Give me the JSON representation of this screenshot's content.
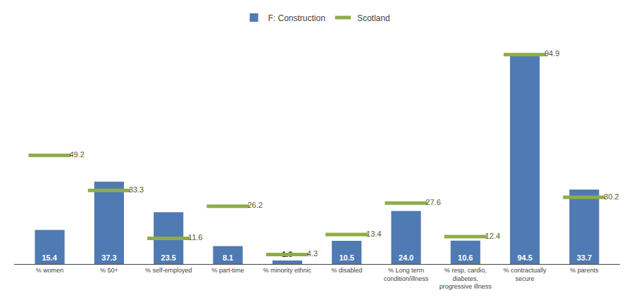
{
  "chart_data": {
    "type": "bar",
    "categories": [
      "% women",
      "% 50+",
      "% self-employed",
      "% part-time",
      "% minority ethnic",
      "% disabled",
      "% Long term\ncondition/illness",
      "% resp, cardio,\ndiabetes,\nprogressive illness",
      "% contractually\nsecure",
      "% parents"
    ],
    "series": [
      {
        "name": "F: Construction",
        "type": "bar",
        "color": "#4f7ab3",
        "values": [
          15.4,
          37.3,
          23.5,
          8.1,
          1.6,
          10.5,
          24.0,
          10.6,
          94.5,
          33.7
        ],
        "value_labels": [
          "15.4",
          "37.3",
          "23.5",
          "8.1",
          "1.6",
          "10.5",
          "24.0",
          "10.6",
          "94.5",
          "33.7"
        ]
      },
      {
        "name": "Scotland",
        "type": "scatter",
        "marker": "line-ew",
        "color": "#8fac48",
        "values": [
          49.2,
          33.3,
          11.6,
          26.2,
          4.3,
          13.4,
          27.6,
          12.4,
          94.9,
          30.2
        ]
      }
    ],
    "ylim": [
      0,
      105
    ],
    "tick_labels": "x",
    "data_labels": true,
    "legend": "top",
    "grid": false
  }
}
